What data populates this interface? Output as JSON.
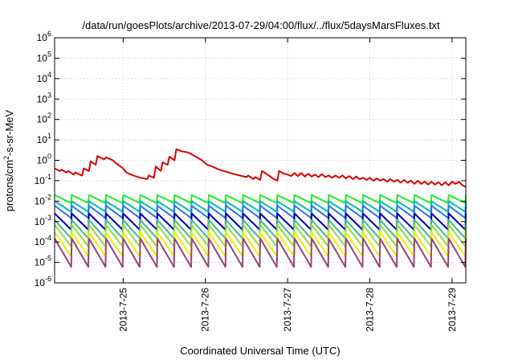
{
  "chart_data": {
    "type": "line",
    "title": "/data/run/goesPlots/archive/2013-07-29/04:00/flux/../flux/5daysMarsFluxes.txt",
    "xlabel": "Coordinated Universal Time (UTC)",
    "ylabel": {
      "main": "protons/cm",
      "sup": "2",
      "rest": "-s-sr-MeV"
    },
    "y_scale": "log",
    "ylim": [
      1e-06,
      1000000.0
    ],
    "y_ticks": [
      {
        "base": "10",
        "exp": "-6",
        "value": 1e-06
      },
      {
        "base": "10",
        "exp": "-5",
        "value": 1e-05
      },
      {
        "base": "10",
        "exp": "-4",
        "value": 0.0001
      },
      {
        "base": "10",
        "exp": "-3",
        "value": 0.001
      },
      {
        "base": "10",
        "exp": "-2",
        "value": 0.01
      },
      {
        "base": "10",
        "exp": "-1",
        "value": 0.1
      },
      {
        "base": "10",
        "exp": "0",
        "value": 1.0
      },
      {
        "base": "10",
        "exp": "1",
        "value": 10.0
      },
      {
        "base": "10",
        "exp": "2",
        "value": 100.0
      },
      {
        "base": "10",
        "exp": "3",
        "value": 1000.0
      },
      {
        "base": "10",
        "exp": "4",
        "value": 10000.0
      },
      {
        "base": "10",
        "exp": "5",
        "value": 100000.0
      },
      {
        "base": "10",
        "exp": "6",
        "value": 1000000.0
      }
    ],
    "xlim": [
      "2013-07-24T04:00",
      "2013-07-29T04:00"
    ],
    "x_ticks": [
      {
        "label": "2013-7-25",
        "value": "2013-07-25T00:00"
      },
      {
        "label": "2013-7-26",
        "value": "2013-07-26T00:00"
      },
      {
        "label": "2013-7-27",
        "value": "2013-07-27T00:00"
      },
      {
        "label": "2013-7-28",
        "value": "2013-07-28T00:00"
      },
      {
        "label": "2013-7-29",
        "value": "2013-07-29T00:00"
      }
    ],
    "grid": true,
    "series": [
      {
        "color": "#dd0000",
        "values": [
          [
            "2013-07-24T04:00",
            0.4
          ],
          [
            "2013-07-24T05:30",
            0.3
          ],
          [
            "2013-07-24T06:00",
            0.35
          ],
          [
            "2013-07-24T07:30",
            0.25
          ],
          [
            "2013-07-24T08:00",
            0.3
          ],
          [
            "2013-07-24T09:30",
            0.2
          ],
          [
            "2013-07-24T10:00",
            0.25
          ],
          [
            "2013-07-24T12:00",
            0.18
          ],
          [
            "2013-07-24T12:30",
            0.4
          ],
          [
            "2013-07-24T14:00",
            0.3
          ],
          [
            "2013-07-24T14:30",
            0.9
          ],
          [
            "2013-07-24T16:00",
            0.6
          ],
          [
            "2013-07-24T16:30",
            1.6
          ],
          [
            "2013-07-24T18:30",
            1.1
          ],
          [
            "2013-07-24T19:00",
            1.4
          ],
          [
            "2013-07-24T21:00",
            1.0
          ],
          [
            "2013-07-24T22:00",
            0.7
          ],
          [
            "2013-07-25T00:00",
            0.4
          ],
          [
            "2013-07-25T01:00",
            0.25
          ],
          [
            "2013-07-25T03:00",
            0.18
          ],
          [
            "2013-07-25T05:00",
            0.14
          ],
          [
            "2013-07-25T07:00",
            0.12
          ],
          [
            "2013-07-25T07:30",
            0.18
          ],
          [
            "2013-07-25T09:00",
            0.14
          ],
          [
            "2013-07-25T09:30",
            0.5
          ],
          [
            "2013-07-25T11:00",
            0.3
          ],
          [
            "2013-07-25T11:30",
            0.8
          ],
          [
            "2013-07-25T13:00",
            0.6
          ],
          [
            "2013-07-25T13:30",
            1.5
          ],
          [
            "2013-07-25T15:00",
            1.0
          ],
          [
            "2013-07-25T15:30",
            3.5
          ],
          [
            "2013-07-25T17:00",
            2.8
          ],
          [
            "2013-07-25T19:00",
            2.4
          ],
          [
            "2013-07-25T21:00",
            1.6
          ],
          [
            "2013-07-25T23:00",
            1.0
          ],
          [
            "2013-07-26T00:30",
            0.6
          ],
          [
            "2013-07-26T02:00",
            0.5
          ],
          [
            "2013-07-26T04:00",
            0.35
          ],
          [
            "2013-07-26T06:00",
            0.28
          ],
          [
            "2013-07-26T08:00",
            0.22
          ],
          [
            "2013-07-26T10:00",
            0.18
          ],
          [
            "2013-07-26T12:00",
            0.15
          ],
          [
            "2013-07-26T12:30",
            0.18
          ],
          [
            "2013-07-26T14:00",
            0.12
          ],
          [
            "2013-07-26T14:30",
            0.15
          ],
          [
            "2013-07-26T16:00",
            0.11
          ],
          [
            "2013-07-26T16:30",
            0.3
          ],
          [
            "2013-07-26T18:30",
            0.18
          ],
          [
            "2013-07-26T20:00",
            0.12
          ],
          [
            "2013-07-26T21:00",
            0.1
          ],
          [
            "2013-07-26T21:30",
            0.3
          ],
          [
            "2013-07-26T23:00",
            0.22
          ],
          [
            "2013-07-27T00:00",
            0.2
          ],
          [
            "2013-07-27T01:00",
            0.17
          ],
          [
            "2013-07-27T02:00",
            0.24
          ],
          [
            "2013-07-27T03:00",
            0.17
          ],
          [
            "2013-07-27T04:00",
            0.24
          ],
          [
            "2013-07-27T05:00",
            0.16
          ],
          [
            "2013-07-27T06:00",
            0.22
          ],
          [
            "2013-07-27T07:00",
            0.16
          ],
          [
            "2013-07-27T08:00",
            0.2
          ],
          [
            "2013-07-27T09:00",
            0.15
          ],
          [
            "2013-07-27T10:00",
            0.21
          ],
          [
            "2013-07-27T11:00",
            0.15
          ],
          [
            "2013-07-27T12:00",
            0.18
          ],
          [
            "2013-07-27T13:00",
            0.14
          ],
          [
            "2013-07-27T14:00",
            0.18
          ],
          [
            "2013-07-27T15:00",
            0.14
          ],
          [
            "2013-07-27T16:00",
            0.18
          ],
          [
            "2013-07-27T17:00",
            0.13
          ],
          [
            "2013-07-27T18:00",
            0.17
          ],
          [
            "2013-07-27T19:00",
            0.12
          ],
          [
            "2013-07-27T20:00",
            0.16
          ],
          [
            "2013-07-27T21:00",
            0.12
          ],
          [
            "2013-07-27T22:00",
            0.14
          ],
          [
            "2013-07-27T23:00",
            0.11
          ],
          [
            "2013-07-28T00:00",
            0.14
          ],
          [
            "2013-07-28T01:00",
            0.1
          ],
          [
            "2013-07-28T02:00",
            0.13
          ],
          [
            "2013-07-28T03:00",
            0.1
          ],
          [
            "2013-07-28T04:00",
            0.12
          ],
          [
            "2013-07-28T05:00",
            0.09
          ],
          [
            "2013-07-28T06:00",
            0.12
          ],
          [
            "2013-07-28T07:00",
            0.09
          ],
          [
            "2013-07-28T08:00",
            0.11
          ],
          [
            "2013-07-28T09:00",
            0.08
          ],
          [
            "2013-07-28T10:00",
            0.11
          ],
          [
            "2013-07-28T11:00",
            0.08
          ],
          [
            "2013-07-28T12:00",
            0.1
          ],
          [
            "2013-07-28T13:00",
            0.07
          ],
          [
            "2013-07-28T14:00",
            0.1
          ],
          [
            "2013-07-28T15:00",
            0.07
          ],
          [
            "2013-07-28T16:00",
            0.09
          ],
          [
            "2013-07-28T17:00",
            0.065
          ],
          [
            "2013-07-28T18:00",
            0.09
          ],
          [
            "2013-07-28T19:00",
            0.065
          ],
          [
            "2013-07-28T20:00",
            0.085
          ],
          [
            "2013-07-28T21:00",
            0.06
          ],
          [
            "2013-07-28T22:00",
            0.085
          ],
          [
            "2013-07-28T23:00",
            0.06
          ],
          [
            "2013-07-29T00:00",
            0.09
          ],
          [
            "2013-07-29T01:00",
            0.07
          ],
          [
            "2013-07-29T02:00",
            0.09
          ],
          [
            "2013-07-29T03:00",
            0.06
          ],
          [
            "2013-07-29T04:00",
            0.05
          ]
        ]
      },
      {
        "color": "#22ee22",
        "cycles": 24,
        "peak": 0.02,
        "trough": 0.008
      },
      {
        "color": "#00bbbb",
        "cycles": 24,
        "peak": 0.01,
        "trough": 0.003
      },
      {
        "color": "#2277ee",
        "cycles": 24,
        "peak": 0.006,
        "trough": 0.0015
      },
      {
        "color": "#0000bb",
        "cycles": 24,
        "peak": 0.0025,
        "trough": 0.0004
      },
      {
        "color": "#44bb88",
        "cycles": 24,
        "peak": 0.0012,
        "trough": 0.00015
      },
      {
        "color": "#88dd44",
        "cycles": 24,
        "peak": 0.0007,
        "trough": 6e-05
      },
      {
        "color": "#eeee00",
        "cycles": 24,
        "peak": 0.0003,
        "trough": 2e-05
      },
      {
        "color": "#994477",
        "cycles": 24,
        "peak": 0.00015,
        "trough": 6e-06
      }
    ]
  }
}
